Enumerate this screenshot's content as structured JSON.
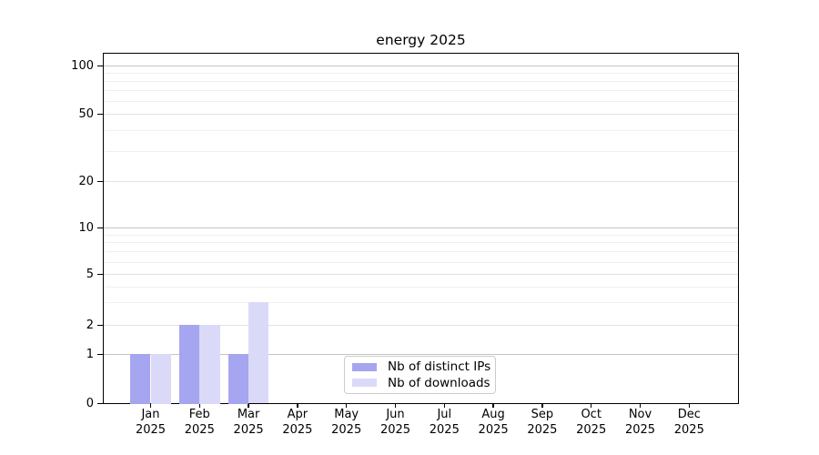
{
  "chart_data": {
    "type": "bar",
    "title": "energy 2025",
    "categories": [
      "Jan",
      "Feb",
      "Mar",
      "Apr",
      "May",
      "Jun",
      "Jul",
      "Aug",
      "Sep",
      "Oct",
      "Nov",
      "Dec"
    ],
    "category_year": "2025",
    "series": [
      {
        "name": "Nb of distinct IPs",
        "color": "#a5a5f0",
        "values": [
          1,
          2,
          1,
          0,
          0,
          0,
          0,
          0,
          0,
          0,
          0,
          0
        ]
      },
      {
        "name": "Nb of downloads",
        "color": "#dadaf8",
        "values": [
          1,
          2,
          3,
          0,
          0,
          0,
          0,
          0,
          0,
          0,
          0,
          0
        ]
      }
    ],
    "y_axis": {
      "scale": "symlog",
      "major_ticks": [
        0,
        1,
        2,
        5,
        10,
        20,
        50,
        100
      ],
      "minor_ticks": [
        3,
        4,
        6,
        7,
        8,
        9,
        30,
        40,
        60,
        70,
        80,
        90
      ],
      "ylim": [
        0,
        120
      ]
    },
    "x_axis": {
      "label": "",
      "tick_count": 12
    },
    "grid": "horizontal",
    "legend": {
      "position": "lower center",
      "border_color": "#cccccc"
    },
    "colors": {
      "decade_grid": "#c4c4c4",
      "submajor_grid": "#e2e2e2",
      "minor_grid": "#f0f0f0",
      "axis": "#000000"
    }
  }
}
